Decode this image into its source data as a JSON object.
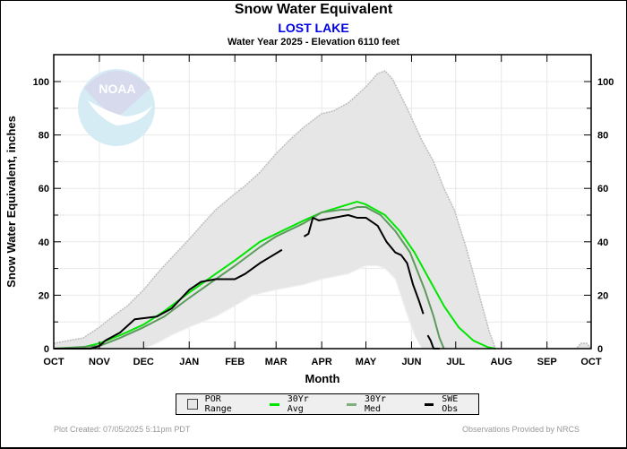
{
  "header": {
    "title": "Snow Water Equivalent",
    "station": "LOST LAKE",
    "subtitle": "Water Year 2025 -  Elevation 6110 feet"
  },
  "footer": {
    "plot_created": "Plot Created: 07/05/2025 5:11pm PDT",
    "observations": "Observations Provided by NRCS"
  },
  "logo": {
    "name": "NOAA",
    "text": "NOAA"
  },
  "colors": {
    "por_fill": "#e6e6e6",
    "por_edge": "#bdbdbd",
    "avg": "#00e600",
    "med": "#5a9a5a",
    "obs": "#000000",
    "grid": "#e8e8e8"
  },
  "chart_data": {
    "type": "line",
    "title": "Snow Water Equivalent",
    "xlabel": "Month",
    "ylabel": "Snow Water Equivalent, inches",
    "xlim": [
      0,
      365
    ],
    "ylim": [
      0,
      110
    ],
    "x_unit": "days since Oct 1",
    "x_ticks": [
      {
        "day": 0,
        "label": "OCT"
      },
      {
        "day": 31,
        "label": "NOV"
      },
      {
        "day": 61,
        "label": "DEC"
      },
      {
        "day": 92,
        "label": "JAN"
      },
      {
        "day": 123,
        "label": "FEB"
      },
      {
        "day": 151,
        "label": "MAR"
      },
      {
        "day": 182,
        "label": "APR"
      },
      {
        "day": 212,
        "label": "MAY"
      },
      {
        "day": 243,
        "label": "JUN"
      },
      {
        "day": 273,
        "label": "JUL"
      },
      {
        "day": 304,
        "label": "AUG"
      },
      {
        "day": 335,
        "label": "SEP"
      },
      {
        "day": 365,
        "label": "OCT"
      }
    ],
    "y_ticks": [
      0,
      20,
      40,
      60,
      80,
      100
    ],
    "y_minor_ticks": [
      10,
      30,
      50,
      70,
      90
    ],
    "grid": true,
    "legend": {
      "placement": "bottom",
      "entries": [
        {
          "label": "POR Range",
          "kind": "box"
        },
        {
          "label": "30Yr Avg",
          "kind": "line",
          "color": "#00e600"
        },
        {
          "label": "30Yr Med",
          "kind": "line",
          "color": "#5a9a5a"
        },
        {
          "label": "SWE Obs",
          "kind": "line",
          "color": "#000000"
        }
      ]
    },
    "por_range": {
      "upper": [
        [
          0,
          2
        ],
        [
          10,
          3
        ],
        [
          20,
          4
        ],
        [
          31,
          8
        ],
        [
          40,
          12
        ],
        [
          50,
          16
        ],
        [
          61,
          22
        ],
        [
          70,
          28
        ],
        [
          80,
          34
        ],
        [
          92,
          41
        ],
        [
          100,
          46
        ],
        [
          110,
          52
        ],
        [
          123,
          58
        ],
        [
          130,
          61
        ],
        [
          140,
          66
        ],
        [
          151,
          73
        ],
        [
          160,
          78
        ],
        [
          170,
          83
        ],
        [
          182,
          88
        ],
        [
          190,
          89
        ],
        [
          200,
          92
        ],
        [
          212,
          98
        ],
        [
          220,
          103
        ],
        [
          225,
          104
        ],
        [
          230,
          101
        ],
        [
          240,
          90
        ],
        [
          250,
          78
        ],
        [
          258,
          70
        ],
        [
          265,
          60
        ],
        [
          272,
          52
        ],
        [
          280,
          38
        ],
        [
          290,
          18
        ],
        [
          296,
          6
        ],
        [
          300,
          0
        ],
        [
          355,
          0
        ],
        [
          358,
          2
        ],
        [
          362,
          2
        ],
        [
          365,
          0
        ]
      ],
      "lower": [
        [
          0,
          0
        ],
        [
          61,
          0
        ],
        [
          70,
          2
        ],
        [
          80,
          5
        ],
        [
          92,
          8
        ],
        [
          110,
          12
        ],
        [
          123,
          16
        ],
        [
          135,
          20
        ],
        [
          151,
          22
        ],
        [
          170,
          24
        ],
        [
          182,
          26
        ],
        [
          200,
          28
        ],
        [
          212,
          31
        ],
        [
          220,
          31
        ],
        [
          225,
          30
        ],
        [
          232,
          26
        ],
        [
          238,
          16
        ],
        [
          245,
          5
        ],
        [
          250,
          0
        ],
        [
          365,
          0
        ]
      ]
    },
    "series": [
      {
        "name": "30Yr Avg",
        "values": [
          [
            0,
            0
          ],
          [
            20,
            0.5
          ],
          [
            31,
            2
          ],
          [
            45,
            5
          ],
          [
            61,
            9
          ],
          [
            75,
            14
          ],
          [
            92,
            21
          ],
          [
            110,
            28
          ],
          [
            123,
            33
          ],
          [
            140,
            40
          ],
          [
            151,
            43
          ],
          [
            170,
            48
          ],
          [
            182,
            51
          ],
          [
            200,
            54
          ],
          [
            206,
            55
          ],
          [
            212,
            54
          ],
          [
            225,
            50
          ],
          [
            235,
            44
          ],
          [
            245,
            36
          ],
          [
            255,
            26
          ],
          [
            265,
            16
          ],
          [
            275,
            8
          ],
          [
            285,
            3
          ],
          [
            295,
            0.5
          ],
          [
            300,
            0
          ]
        ]
      },
      {
        "name": "30Yr Med",
        "values": [
          [
            0,
            0
          ],
          [
            31,
            1
          ],
          [
            45,
            4
          ],
          [
            61,
            8
          ],
          [
            75,
            12
          ],
          [
            92,
            19
          ],
          [
            110,
            26
          ],
          [
            123,
            31
          ],
          [
            140,
            38
          ],
          [
            151,
            42
          ],
          [
            170,
            47
          ],
          [
            182,
            51
          ],
          [
            195,
            52
          ],
          [
            200,
            52
          ],
          [
            206,
            53
          ],
          [
            212,
            53
          ],
          [
            222,
            50
          ],
          [
            232,
            44
          ],
          [
            242,
            36
          ],
          [
            252,
            22
          ],
          [
            258,
            12
          ],
          [
            262,
            4
          ],
          [
            265,
            0
          ]
        ]
      },
      {
        "name": "SWE Obs",
        "segments": [
          [
            [
              0,
              0
            ],
            [
              25,
              0
            ],
            [
              31,
              1
            ],
            [
              35,
              3
            ],
            [
              45,
              6
            ],
            [
              55,
              11
            ],
            [
              70,
              12
            ],
            [
              80,
              15
            ],
            [
              92,
              22
            ],
            [
              100,
              25
            ],
            [
              110,
              26
            ],
            [
              123,
              26
            ],
            [
              130,
              28
            ],
            [
              140,
              32
            ],
            [
              146,
              34
            ],
            [
              152,
              36
            ],
            [
              155,
              37
            ]
          ],
          [
            [
              170,
              42
            ],
            [
              173,
              43
            ],
            [
              176,
              49
            ],
            [
              180,
              48
            ],
            [
              190,
              49
            ],
            [
              200,
              50
            ],
            [
              206,
              49
            ],
            [
              212,
              49
            ],
            [
              220,
              46
            ],
            [
              226,
              40
            ],
            [
              232,
              36
            ],
            [
              236,
              35
            ],
            [
              240,
              32
            ],
            [
              244,
              24
            ],
            [
              248,
              18
            ],
            [
              251,
              13
            ]
          ],
          [
            [
              254,
              5
            ],
            [
              256,
              3
            ],
            [
              258,
              0
            ],
            [
              262,
              0
            ]
          ]
        ]
      }
    ]
  }
}
